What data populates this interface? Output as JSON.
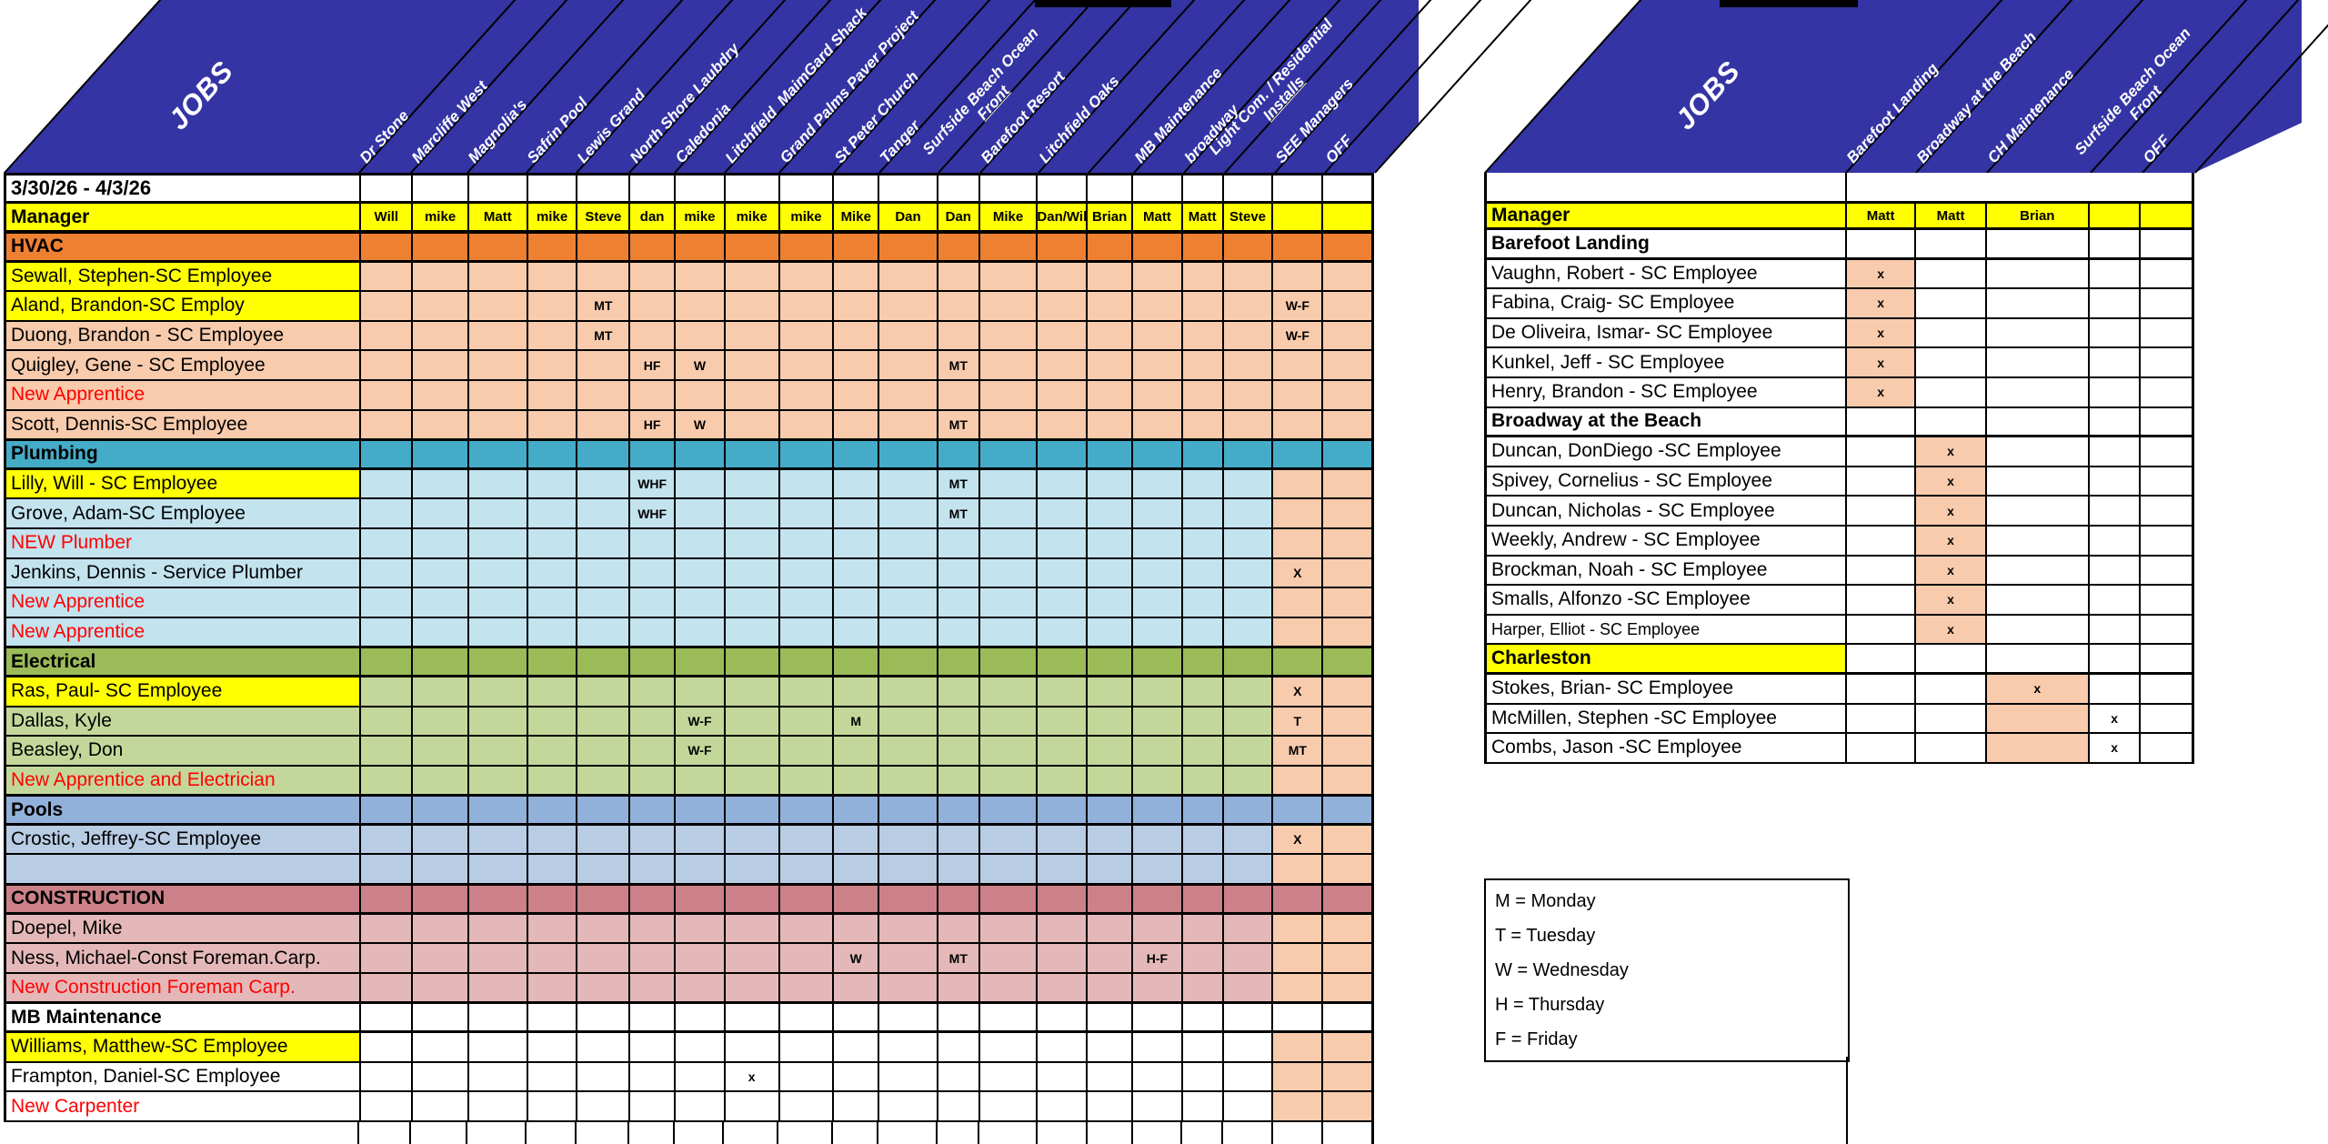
{
  "colors": {
    "header_blue": "#3434A4",
    "yellow": "#FFFF00",
    "peach": "#F8CBAD",
    "grid": "#000000",
    "vacancy_red": "#FF0000",
    "themes": {
      "hvac": {
        "head": "#EE8032",
        "row": "#F8CBAD"
      },
      "plumbing": {
        "head": "#45ACC8",
        "row": "#C3E3EF"
      },
      "electrical": {
        "head": "#9BBB59",
        "row": "#C4D79B"
      },
      "pools": {
        "head": "#92B1DA",
        "row": "#B8CCE4"
      },
      "construction": {
        "head": "#CB8187",
        "row": "#E4B8B9"
      },
      "mb": {
        "head": "#FFFFFF",
        "row": "#FFFFFF"
      }
    }
  },
  "left_table": {
    "corner_label": "JOBS",
    "date_range": "3/30/26 - 4/3/26",
    "manager_label": "Manager",
    "columns": [
      {
        "label": "Dr Stone",
        "manager": "Will"
      },
      {
        "label": "Marcliffe West",
        "manager": "mike"
      },
      {
        "label": "Magnolia's",
        "manager": "Matt"
      },
      {
        "label": "Safrin Pool",
        "manager": "mike"
      },
      {
        "label": "Lewis Grand",
        "manager": "Steve"
      },
      {
        "label": "North Shore Laubdry",
        "manager": "dan"
      },
      {
        "label": "Caledonia",
        "manager": "mike"
      },
      {
        "label": "Litchfield  MaimGard Shack",
        "manager": "mike"
      },
      {
        "label": "Grand Palms Paver Project",
        "manager": "mike"
      },
      {
        "label": "St Peter Church",
        "manager": "Mike"
      },
      {
        "label": "Tanger",
        "manager": "Dan"
      },
      {
        "label": "Surfside Beach Ocean\nFront",
        "manager": "Dan"
      },
      {
        "label": "Barefoot Resort",
        "manager": "Mike"
      },
      {
        "label": "Litchfield Oaks",
        "manager": "Dan/Wil"
      },
      {
        "label": "",
        "manager": "Brian"
      },
      {
        "label": "MB Maintenance",
        "manager": "Matt"
      },
      {
        "label": "broadway",
        "manager": "Matt"
      },
      {
        "label": "Light Com. / Residential\nInstalls",
        "manager": "Steve"
      },
      {
        "label": "SEE Managers",
        "manager": ""
      },
      {
        "label": "OFF",
        "manager": ""
      }
    ],
    "rows": [
      {
        "type": "section",
        "label": "HVAC",
        "theme": "hvac"
      },
      {
        "type": "person",
        "label": "Sewall, Stephen-SC Employee",
        "theme": "hvac",
        "highlight": true,
        "marks": {}
      },
      {
        "type": "person",
        "label": "Aland, Brandon-SC Employ",
        "theme": "hvac",
        "highlight": true,
        "marks": {
          "5": "MT",
          "19": "W-F"
        }
      },
      {
        "type": "person",
        "label": "Duong, Brandon - SC Employee",
        "theme": "hvac",
        "marks": {
          "5": "MT",
          "19": "W-F"
        }
      },
      {
        "type": "person",
        "label": "Quigley, Gene - SC Employee",
        "theme": "hvac",
        "marks": {
          "6": "HF",
          "7": "W",
          "12": "MT"
        }
      },
      {
        "type": "vacancy",
        "label": "New Apprentice",
        "theme": "hvac",
        "marks": {}
      },
      {
        "type": "person",
        "label": "Scott, Dennis-SC Employee",
        "theme": "hvac",
        "marks": {
          "6": "HF",
          "7": "W",
          "12": "MT"
        }
      },
      {
        "type": "section",
        "label": "Plumbing",
        "theme": "plumbing"
      },
      {
        "type": "person",
        "label": "Lilly, Will - SC Employee",
        "theme": "plumbing",
        "highlight": true,
        "marks": {
          "6": "WHF",
          "12": "MT"
        }
      },
      {
        "type": "person",
        "label": "Grove, Adam-SC Employee",
        "theme": "plumbing",
        "marks": {
          "6": "WHF",
          "12": "MT"
        }
      },
      {
        "type": "vacancy",
        "label": "NEW Plumber",
        "theme": "plumbing",
        "marks": {}
      },
      {
        "type": "person",
        "label": "Jenkins, Dennis - Service Plumber",
        "theme": "plumbing",
        "marks": {
          "19": "X"
        }
      },
      {
        "type": "vacancy",
        "label": "New Apprentice",
        "theme": "plumbing",
        "marks": {}
      },
      {
        "type": "vacancy",
        "label": "New Apprentice",
        "theme": "plumbing",
        "marks": {}
      },
      {
        "type": "section",
        "label": "Electrical",
        "theme": "electrical"
      },
      {
        "type": "person",
        "label": "Ras, Paul- SC Employee",
        "theme": "electrical",
        "highlight": true,
        "marks": {
          "19": "X"
        }
      },
      {
        "type": "person",
        "label": "Dallas, Kyle",
        "theme": "electrical",
        "marks": {
          "7": "W-F",
          "10": "M",
          "19": "T"
        }
      },
      {
        "type": "person",
        "label": "Beasley, Don",
        "theme": "electrical",
        "marks": {
          "7": "W-F",
          "19": "MT"
        }
      },
      {
        "type": "vacancy",
        "label": "New Apprentice and Electrician",
        "theme": "electrical",
        "marks": {}
      },
      {
        "type": "section",
        "label": "Pools",
        "theme": "pools"
      },
      {
        "type": "person",
        "label": "Crostic, Jeffrey-SC Employee",
        "theme": "pools",
        "marks": {
          "19": "X"
        }
      },
      {
        "type": "person",
        "label": "",
        "theme": "pools",
        "marks": {}
      },
      {
        "type": "section",
        "label": "CONSTRUCTION",
        "theme": "construction"
      },
      {
        "type": "person",
        "label": "Doepel, Mike",
        "theme": "construction",
        "marks": {}
      },
      {
        "type": "person",
        "label": "Ness, Michael-Const Foreman.Carp.",
        "theme": "construction",
        "marks": {
          "10": "W",
          "12": "MT",
          "16": "H-F"
        }
      },
      {
        "type": "vacancy",
        "label": "New Construction Foreman Carp.",
        "theme": "construction",
        "marks": {}
      },
      {
        "type": "section",
        "label": "MB Maintenance",
        "theme": "mb"
      },
      {
        "type": "person",
        "label": "Williams, Matthew-SC Employee",
        "theme": "mb",
        "highlight": true,
        "marks": {}
      },
      {
        "type": "person",
        "label": "Frampton, Daniel-SC Employee",
        "theme": "mb",
        "marks": {
          "8": "x"
        }
      },
      {
        "type": "vacancy",
        "label": "New Carpenter",
        "theme": "mb",
        "marks": {}
      },
      {
        "type": "ghost",
        "label": "",
        "theme": "mb",
        "marks": {}
      }
    ]
  },
  "right_table": {
    "corner_label": "JOBS",
    "manager_label": "Manager",
    "columns": [
      {
        "label": "Barefoot Landing",
        "manager": "Matt"
      },
      {
        "label": "Broadway at the Beach",
        "manager": "Matt"
      },
      {
        "label": "CH Maintenance",
        "manager": "Brian"
      },
      {
        "label": "Surfside Beach Ocean\nFront",
        "manager": ""
      },
      {
        "label": "OFF",
        "manager": ""
      }
    ],
    "rows": [
      {
        "type": "section",
        "label": "Barefoot Landing"
      },
      {
        "type": "person",
        "label": "Vaughn, Robert - SC Employee",
        "marks": {
          "1": "x"
        },
        "fill": [
          1
        ]
      },
      {
        "type": "person",
        "label": "Fabina, Craig- SC Employee",
        "marks": {
          "1": "x"
        },
        "fill": [
          1
        ]
      },
      {
        "type": "person",
        "label": "De Oliveira, Ismar- SC Employee",
        "marks": {
          "1": "x"
        },
        "fill": [
          1
        ]
      },
      {
        "type": "person",
        "label": "Kunkel, Jeff - SC Employee",
        "marks": {
          "1": "x"
        },
        "fill": [
          1
        ]
      },
      {
        "type": "person",
        "label": "Henry, Brandon - SC Employee",
        "marks": {
          "1": "x"
        },
        "fill": [
          1
        ]
      },
      {
        "type": "section",
        "label": "Broadway at the Beach"
      },
      {
        "type": "person",
        "label": "Duncan, DonDiego -SC Employee",
        "marks": {
          "2": "x"
        },
        "fill": [
          2
        ]
      },
      {
        "type": "person",
        "label": "Spivey, Cornelius - SC Employee",
        "marks": {
          "2": "x"
        },
        "fill": [
          2
        ]
      },
      {
        "type": "person",
        "label": "Duncan, Nicholas - SC Employee",
        "marks": {
          "2": "x"
        },
        "fill": [
          2
        ]
      },
      {
        "type": "person",
        "label": "Weekly, Andrew - SC Employee",
        "marks": {
          "2": "x"
        },
        "fill": [
          2
        ]
      },
      {
        "type": "person",
        "label": "Brockman, Noah - SC Employee",
        "marks": {
          "2": "x"
        },
        "fill": [
          2
        ]
      },
      {
        "type": "person",
        "label": "Smalls, Alfonzo -SC Employee",
        "marks": {
          "2": "x"
        },
        "fill": [
          2
        ]
      },
      {
        "type": "person",
        "label": "Harper, Elliot - SC Employee",
        "small": true,
        "marks": {
          "2": "x"
        },
        "fill": [
          2
        ]
      },
      {
        "type": "section",
        "label": "Charleston",
        "yellow": true
      },
      {
        "type": "person",
        "label": "Stokes, Brian- SC Employee",
        "marks": {
          "3": "x"
        },
        "fill": [
          3
        ]
      },
      {
        "type": "person",
        "label": "McMillen, Stephen -SC Employee",
        "marks": {
          "4": "x"
        },
        "fill": [
          3
        ]
      },
      {
        "type": "person",
        "label": "Combs, Jason -SC Employee",
        "marks": {
          "4": "x"
        },
        "fill": [
          3
        ]
      }
    ]
  },
  "legend": {
    "lines": [
      "M = Monday",
      "T = Tuesday",
      "W = Wednesday",
      "H = Thursday",
      "F = Friday"
    ]
  }
}
